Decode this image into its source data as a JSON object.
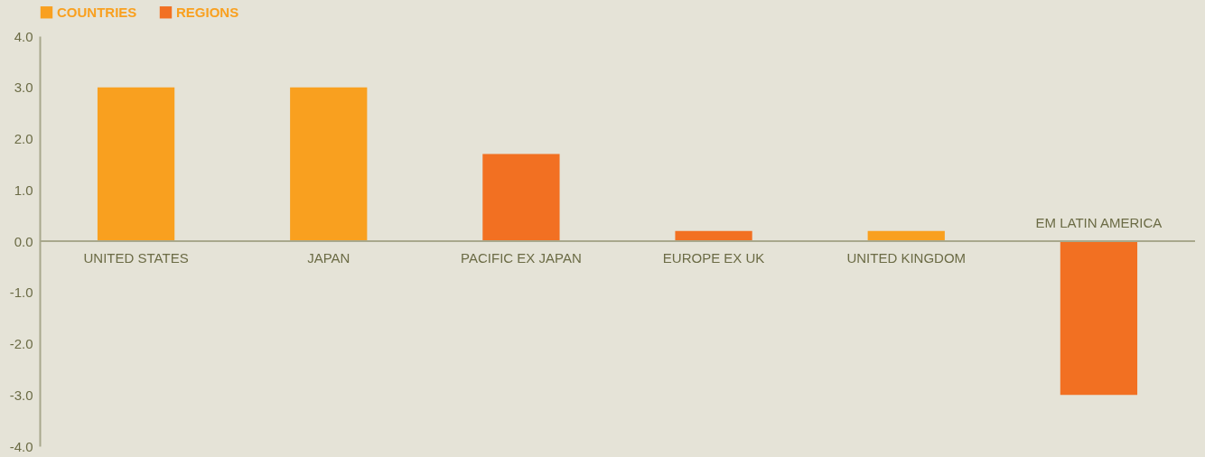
{
  "chart_data": {
    "type": "bar",
    "categories": [
      "UNITED STATES",
      "JAPAN",
      "PACIFIC EX JAPAN",
      "EUROPE EX UK",
      "UNITED KINGDOM",
      "EM LATIN AMERICA"
    ],
    "series": [
      {
        "name": "COUNTRIES",
        "color": "#f9a01f",
        "values": [
          3.0,
          3.0,
          null,
          null,
          0.2,
          null
        ]
      },
      {
        "name": "REGIONS",
        "color": "#f27022",
        "values": [
          null,
          null,
          1.7,
          0.2,
          null,
          -3.0
        ]
      }
    ],
    "ylim": [
      -4,
      4
    ],
    "yticks": [
      {
        "value": -4,
        "label": "-4.0"
      },
      {
        "value": -3,
        "label": "-3.0"
      },
      {
        "value": -2,
        "label": "-2.0"
      },
      {
        "value": -1,
        "label": "-1.0"
      },
      {
        "value": 0,
        "label": "0.0"
      },
      {
        "value": 1,
        "label": "1.0"
      },
      {
        "value": 2,
        "label": "2.0"
      },
      {
        "value": 3,
        "label": "3.0"
      },
      {
        "value": 4,
        "label": "4.0"
      }
    ],
    "legend": "top left",
    "grid": false
  }
}
